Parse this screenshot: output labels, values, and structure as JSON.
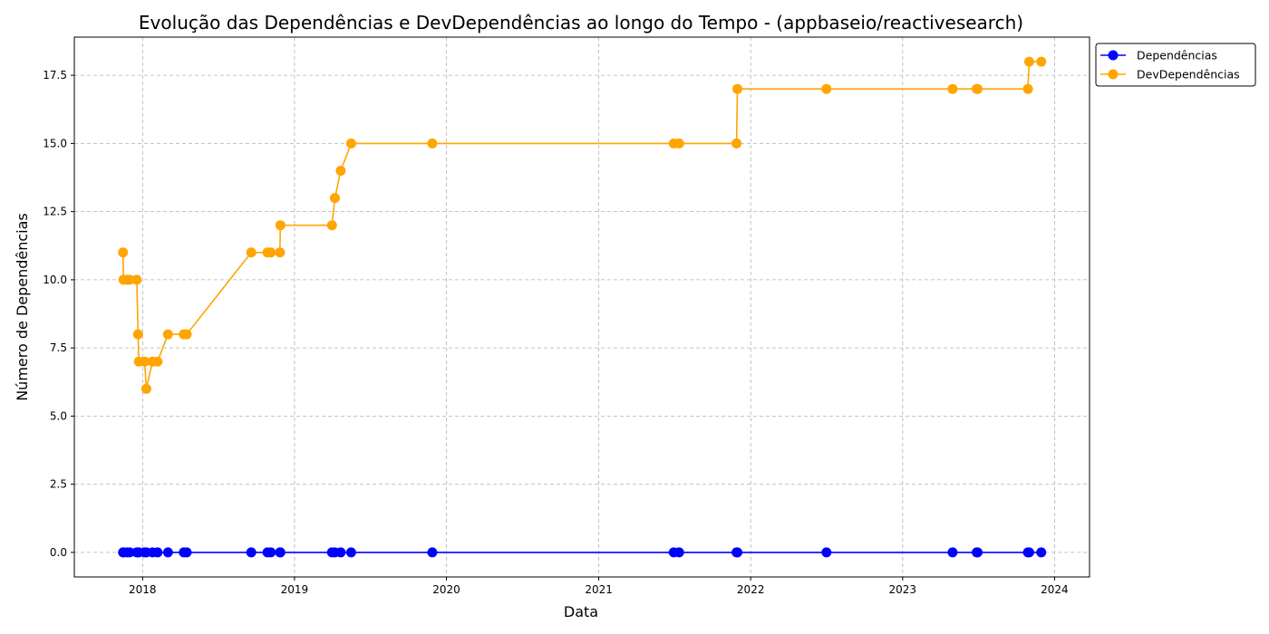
{
  "chart_data": {
    "type": "line",
    "title": "Evolução das Dependências e DevDependências ao longo do Tempo - (appbaseio/reactivesearch)",
    "xlabel": "Data",
    "ylabel": "Número de Dependências",
    "x_ticks": [
      "2018",
      "2019",
      "2020",
      "2021",
      "2022",
      "2023",
      "2024"
    ],
    "y_ticks": [
      "0.0",
      "2.5",
      "5.0",
      "7.5",
      "10.0",
      "12.5",
      "15.0",
      "17.5"
    ],
    "xlim": [
      "2017-07-21",
      "2024-03-25"
    ],
    "ylim": [
      -0.9,
      18.9
    ],
    "grid": true,
    "legend_position": "outside-top-right",
    "x": [
      "2017-11-15",
      "2017-11-16",
      "2017-11-25",
      "2017-12-01",
      "2017-12-18",
      "2017-12-21",
      "2017-12-23",
      "2018-01-06",
      "2018-01-10",
      "2018-01-25",
      "2018-02-06",
      "2018-03-03",
      "2018-04-10",
      "2018-04-17",
      "2018-09-19",
      "2018-10-28",
      "2018-11-05",
      "2018-11-27",
      "2018-11-28",
      "2019-04-01",
      "2019-04-08",
      "2019-04-22",
      "2019-05-17",
      "2019-11-28",
      "2021-06-30",
      "2021-07-13",
      "2021-11-28",
      "2021-11-30",
      "2022-07-02",
      "2023-05-01",
      "2023-06-28",
      "2023-06-30",
      "2023-10-29",
      "2023-11-01",
      "2023-11-30"
    ],
    "series": [
      {
        "name": "Dependências",
        "color": "#0000ff",
        "values": [
          0,
          0,
          0,
          0,
          0,
          0,
          0,
          0,
          0,
          0,
          0,
          0,
          0,
          0,
          0,
          0,
          0,
          0,
          0,
          0,
          0,
          0,
          0,
          0,
          0,
          0,
          0,
          0,
          0,
          0,
          0,
          0,
          0,
          0,
          0
        ]
      },
      {
        "name": "DevDependências",
        "color": "#ffa500",
        "values": [
          11,
          10,
          10,
          10,
          10,
          8,
          7,
          7,
          6,
          7,
          7,
          8,
          8,
          8,
          11,
          11,
          11,
          11,
          12,
          12,
          13,
          14,
          15,
          15,
          15,
          15,
          15,
          17,
          17,
          17,
          17,
          17,
          17,
          18,
          18
        ]
      }
    ]
  }
}
